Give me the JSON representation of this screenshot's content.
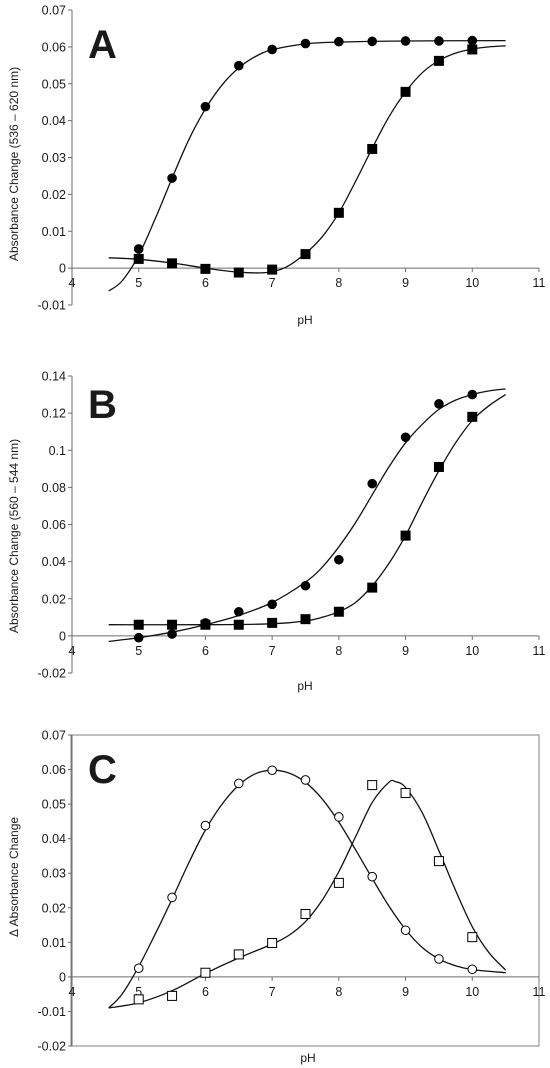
{
  "chart_data": [
    {
      "type": "scatter",
      "panel_label": "A",
      "xlabel": "pH",
      "ylabel": "Absorbance Change (536 – 620 nm)",
      "xlim": [
        4,
        11
      ],
      "ylim": [
        -0.01,
        0.07
      ],
      "xticks": [
        "4",
        "5",
        "6",
        "7",
        "8",
        "9",
        "10",
        "11"
      ],
      "yticks": [
        "-0.01",
        "0",
        "0.01",
        "0.02",
        "0.03",
        "0.04",
        "0.05",
        "0.06",
        "0.07"
      ],
      "x_axis_at": 0,
      "frame": false,
      "grid": false,
      "series": [
        {
          "marker": "filled-circle",
          "color": "#000000",
          "points": [
            [
              5.0,
              0.0052
            ],
            [
              5.5,
              0.0244
            ],
            [
              6.0,
              0.0438
            ],
            [
              6.5,
              0.0549
            ],
            [
              7.0,
              0.0593
            ],
            [
              7.5,
              0.0609
            ],
            [
              8.0,
              0.0614
            ],
            [
              8.5,
              0.0615
            ],
            [
              9.0,
              0.0616
            ],
            [
              9.5,
              0.0616
            ],
            [
              10.0,
              0.0617
            ]
          ],
          "curve": [
            [
              4.55,
              -0.0062
            ],
            [
              4.75,
              -0.0035
            ],
            [
              5.0,
              0.0035
            ],
            [
              5.25,
              0.0135
            ],
            [
              5.5,
              0.0244
            ],
            [
              5.75,
              0.0348
            ],
            [
              6.0,
              0.0432
            ],
            [
              6.25,
              0.0497
            ],
            [
              6.5,
              0.0543
            ],
            [
              6.75,
              0.0574
            ],
            [
              7.0,
              0.0592
            ],
            [
              7.5,
              0.0608
            ],
            [
              8.0,
              0.0613
            ],
            [
              9.0,
              0.0616
            ],
            [
              10.5,
              0.0617
            ]
          ]
        },
        {
          "marker": "filled-square",
          "color": "#000000",
          "points": [
            [
              5.0,
              0.0025
            ],
            [
              5.5,
              0.0013
            ],
            [
              6.0,
              -0.0002
            ],
            [
              6.5,
              -0.0012
            ],
            [
              7.0,
              -0.0004
            ],
            [
              7.5,
              0.0038
            ],
            [
              8.0,
              0.015
            ],
            [
              8.5,
              0.0323
            ],
            [
              9.0,
              0.0478
            ],
            [
              9.5,
              0.0562
            ],
            [
              10.0,
              0.0593
            ]
          ],
          "curve": [
            [
              4.55,
              0.0028
            ],
            [
              5.0,
              0.0024
            ],
            [
              5.5,
              0.0014
            ],
            [
              6.0,
              0.0
            ],
            [
              6.5,
              -0.0011
            ],
            [
              6.9,
              -0.0012
            ],
            [
              7.2,
              0.0002
            ],
            [
              7.5,
              0.004
            ],
            [
              7.75,
              0.0085
            ],
            [
              8.0,
              0.015
            ],
            [
              8.25,
              0.0235
            ],
            [
              8.5,
              0.0325
            ],
            [
              8.75,
              0.041
            ],
            [
              9.0,
              0.0478
            ],
            [
              9.25,
              0.053
            ],
            [
              9.5,
              0.0563
            ],
            [
              9.75,
              0.0583
            ],
            [
              10.0,
              0.0594
            ],
            [
              10.25,
              0.06
            ],
            [
              10.5,
              0.0603
            ]
          ]
        }
      ]
    },
    {
      "type": "scatter",
      "panel_label": "B",
      "xlabel": "pH",
      "ylabel": "Absorbance Change (560 – 544 nm)",
      "xlim": [
        4,
        11
      ],
      "ylim": [
        -0.02,
        0.14
      ],
      "xticks": [
        "4",
        "5",
        "6",
        "7",
        "8",
        "9",
        "10",
        "11"
      ],
      "yticks": [
        "-0.02",
        "0",
        "0.02",
        "0.04",
        "0.06",
        "0.08",
        "0.1",
        "0.12",
        "0.14"
      ],
      "x_axis_at": 0,
      "frame": false,
      "grid": false,
      "series": [
        {
          "marker": "filled-circle",
          "color": "#000000",
          "points": [
            [
              5.0,
              -0.001
            ],
            [
              5.5,
              0.001
            ],
            [
              6.0,
              0.007
            ],
            [
              6.5,
              0.013
            ],
            [
              7.0,
              0.017
            ],
            [
              7.5,
              0.027
            ],
            [
              8.0,
              0.041
            ],
            [
              8.5,
              0.082
            ],
            [
              9.0,
              0.107
            ],
            [
              9.5,
              0.125
            ],
            [
              10.0,
              0.13
            ]
          ],
          "curve": [
            [
              4.55,
              -0.003
            ],
            [
              5.0,
              -0.001
            ],
            [
              5.5,
              0.002
            ],
            [
              6.0,
              0.006
            ],
            [
              6.5,
              0.011
            ],
            [
              7.0,
              0.018
            ],
            [
              7.5,
              0.029
            ],
            [
              7.75,
              0.037
            ],
            [
              8.0,
              0.048
            ],
            [
              8.25,
              0.061
            ],
            [
              8.5,
              0.076
            ],
            [
              8.75,
              0.091
            ],
            [
              9.0,
              0.104
            ],
            [
              9.25,
              0.114
            ],
            [
              9.5,
              0.122
            ],
            [
              9.75,
              0.127
            ],
            [
              10.0,
              0.13
            ],
            [
              10.25,
              0.132
            ],
            [
              10.5,
              0.133
            ]
          ]
        },
        {
          "marker": "filled-square",
          "color": "#000000",
          "points": [
            [
              5.0,
              0.006
            ],
            [
              5.5,
              0.006
            ],
            [
              6.0,
              0.006
            ],
            [
              6.5,
              0.006
            ],
            [
              7.0,
              0.007
            ],
            [
              7.5,
              0.009
            ],
            [
              8.0,
              0.013
            ],
            [
              8.5,
              0.026
            ],
            [
              9.0,
              0.054
            ],
            [
              9.5,
              0.091
            ],
            [
              10.0,
              0.118
            ]
          ],
          "curve": [
            [
              4.55,
              0.006
            ],
            [
              6.0,
              0.006
            ],
            [
              7.0,
              0.0065
            ],
            [
              7.5,
              0.008
            ],
            [
              7.75,
              0.01
            ],
            [
              8.0,
              0.013
            ],
            [
              8.25,
              0.018
            ],
            [
              8.5,
              0.027
            ],
            [
              8.75,
              0.039
            ],
            [
              9.0,
              0.054
            ],
            [
              9.25,
              0.072
            ],
            [
              9.5,
              0.089
            ],
            [
              9.75,
              0.104
            ],
            [
              10.0,
              0.116
            ],
            [
              10.25,
              0.124
            ],
            [
              10.5,
              0.13
            ]
          ]
        }
      ]
    },
    {
      "type": "scatter",
      "panel_label": "C",
      "xlabel": "pH",
      "ylabel": "Δ Absorbance Change",
      "xlim": [
        4,
        11
      ],
      "ylim": [
        -0.02,
        0.07
      ],
      "xticks": [
        "4",
        "5",
        "6",
        "7",
        "8",
        "9",
        "10",
        "11"
      ],
      "yticks": [
        "-0.02",
        "-0.01",
        "0",
        "0.01",
        "0.02",
        "0.03",
        "0.04",
        "0.05",
        "0.06",
        "0.07"
      ],
      "x_axis_at": 0,
      "frame": true,
      "grid": false,
      "series": [
        {
          "marker": "open-circle",
          "color": "#000000",
          "points": [
            [
              5.0,
              0.0025
            ],
            [
              5.5,
              0.023
            ],
            [
              6.0,
              0.0438
            ],
            [
              6.5,
              0.056
            ],
            [
              7.0,
              0.0598
            ],
            [
              7.5,
              0.057
            ],
            [
              8.0,
              0.0463
            ],
            [
              8.5,
              0.029
            ],
            [
              9.0,
              0.0135
            ],
            [
              9.5,
              0.0052
            ],
            [
              10.0,
              0.0022
            ]
          ],
          "curve": [
            [
              4.55,
              -0.009
            ],
            [
              4.75,
              -0.005
            ],
            [
              5.0,
              0.003
            ],
            [
              5.25,
              0.0125
            ],
            [
              5.5,
              0.0225
            ],
            [
              5.75,
              0.033
            ],
            [
              6.0,
              0.0425
            ],
            [
              6.25,
              0.05
            ],
            [
              6.5,
              0.0555
            ],
            [
              6.75,
              0.0588
            ],
            [
              7.0,
              0.0598
            ],
            [
              7.25,
              0.059
            ],
            [
              7.5,
              0.0563
            ],
            [
              7.75,
              0.0515
            ],
            [
              8.0,
              0.0448
            ],
            [
              8.25,
              0.0368
            ],
            [
              8.5,
              0.0285
            ],
            [
              8.75,
              0.0205
            ],
            [
              9.0,
              0.0137
            ],
            [
              9.25,
              0.0085
            ],
            [
              9.5,
              0.0052
            ],
            [
              9.75,
              0.0032
            ],
            [
              10.0,
              0.0021
            ],
            [
              10.5,
              0.0012
            ]
          ]
        },
        {
          "marker": "open-square",
          "color": "#000000",
          "points": [
            [
              5.0,
              -0.0065
            ],
            [
              5.5,
              -0.0055
            ],
            [
              6.0,
              0.0012
            ],
            [
              6.5,
              0.0065
            ],
            [
              7.0,
              0.0098
            ],
            [
              7.5,
              0.0182
            ],
            [
              8.0,
              0.0272
            ],
            [
              8.5,
              0.0555
            ],
            [
              9.0,
              0.0532
            ],
            [
              9.5,
              0.0335
            ],
            [
              10.0,
              0.0115
            ]
          ],
          "curve": [
            [
              4.55,
              -0.009
            ],
            [
              5.0,
              -0.0075
            ],
            [
              5.5,
              -0.004
            ],
            [
              6.0,
              0.001
            ],
            [
              6.5,
              0.0055
            ],
            [
              7.0,
              0.0095
            ],
            [
              7.25,
              0.012
            ],
            [
              7.5,
              0.016
            ],
            [
              7.75,
              0.0222
            ],
            [
              8.0,
              0.0305
            ],
            [
              8.25,
              0.0405
            ],
            [
              8.5,
              0.0505
            ],
            [
              8.75,
              0.0563
            ],
            [
              8.85,
              0.0565
            ],
            [
              9.0,
              0.0548
            ],
            [
              9.25,
              0.0475
            ],
            [
              9.5,
              0.0365
            ],
            [
              9.75,
              0.025
            ],
            [
              10.0,
              0.0145
            ],
            [
              10.25,
              0.007
            ],
            [
              10.5,
              0.002
            ]
          ]
        }
      ]
    }
  ]
}
